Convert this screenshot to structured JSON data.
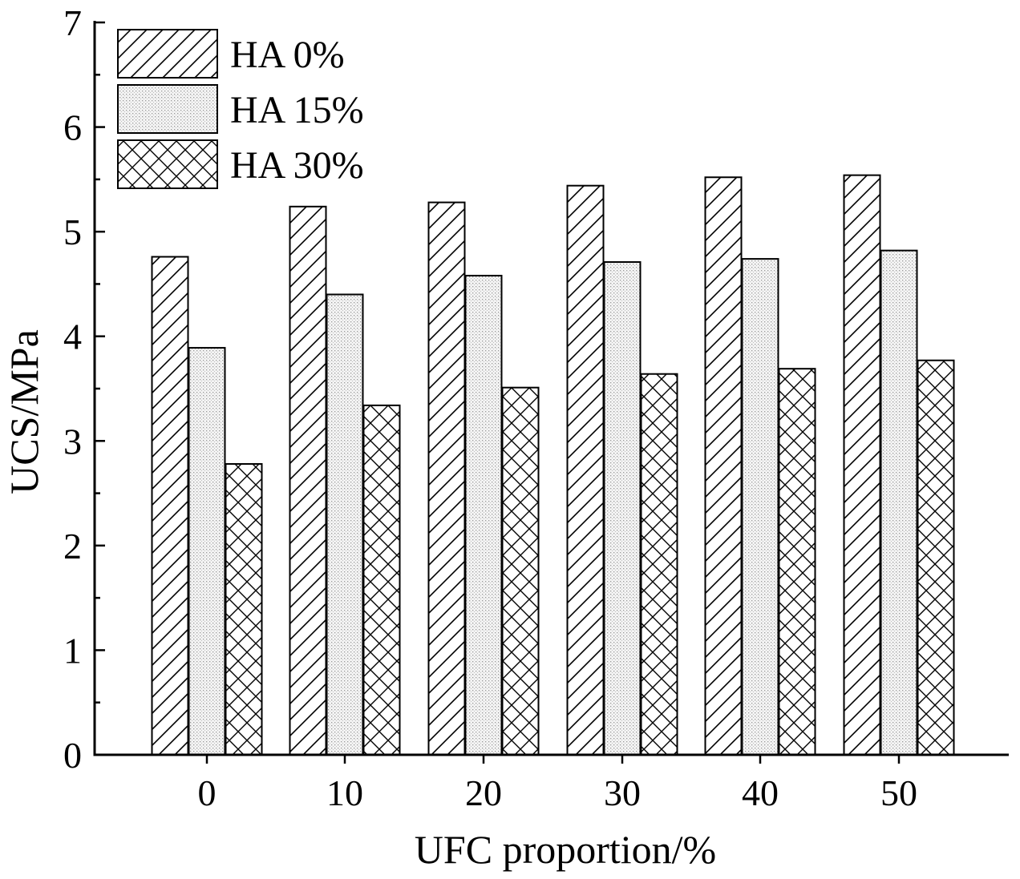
{
  "chart_data": {
    "type": "bar",
    "categories": [
      "0",
      "10",
      "20",
      "30",
      "40",
      "50"
    ],
    "series": [
      {
        "name": "HA 0%",
        "values": [
          4.76,
          5.24,
          5.28,
          5.44,
          5.52,
          5.54
        ],
        "pattern": "diagonal-hatch"
      },
      {
        "name": "HA 15%",
        "values": [
          3.89,
          4.4,
          4.58,
          4.71,
          4.74,
          4.82
        ],
        "pattern": "dotted"
      },
      {
        "name": "HA 30%",
        "values": [
          2.78,
          3.34,
          3.51,
          3.64,
          3.69,
          3.77
        ],
        "pattern": "crosshatch"
      }
    ],
    "title": "",
    "xlabel": "UFC proportion/%",
    "ylabel": "UCS/MPa",
    "ylim": [
      0,
      7
    ],
    "yticks": [
      "0",
      "1",
      "2",
      "3",
      "4",
      "5",
      "6",
      "7"
    ],
    "grid": false,
    "legend_position": "top-left",
    "colors": {
      "stroke": "#000000",
      "background": "#ffffff",
      "dot_fill": "#c8c8c8"
    }
  }
}
